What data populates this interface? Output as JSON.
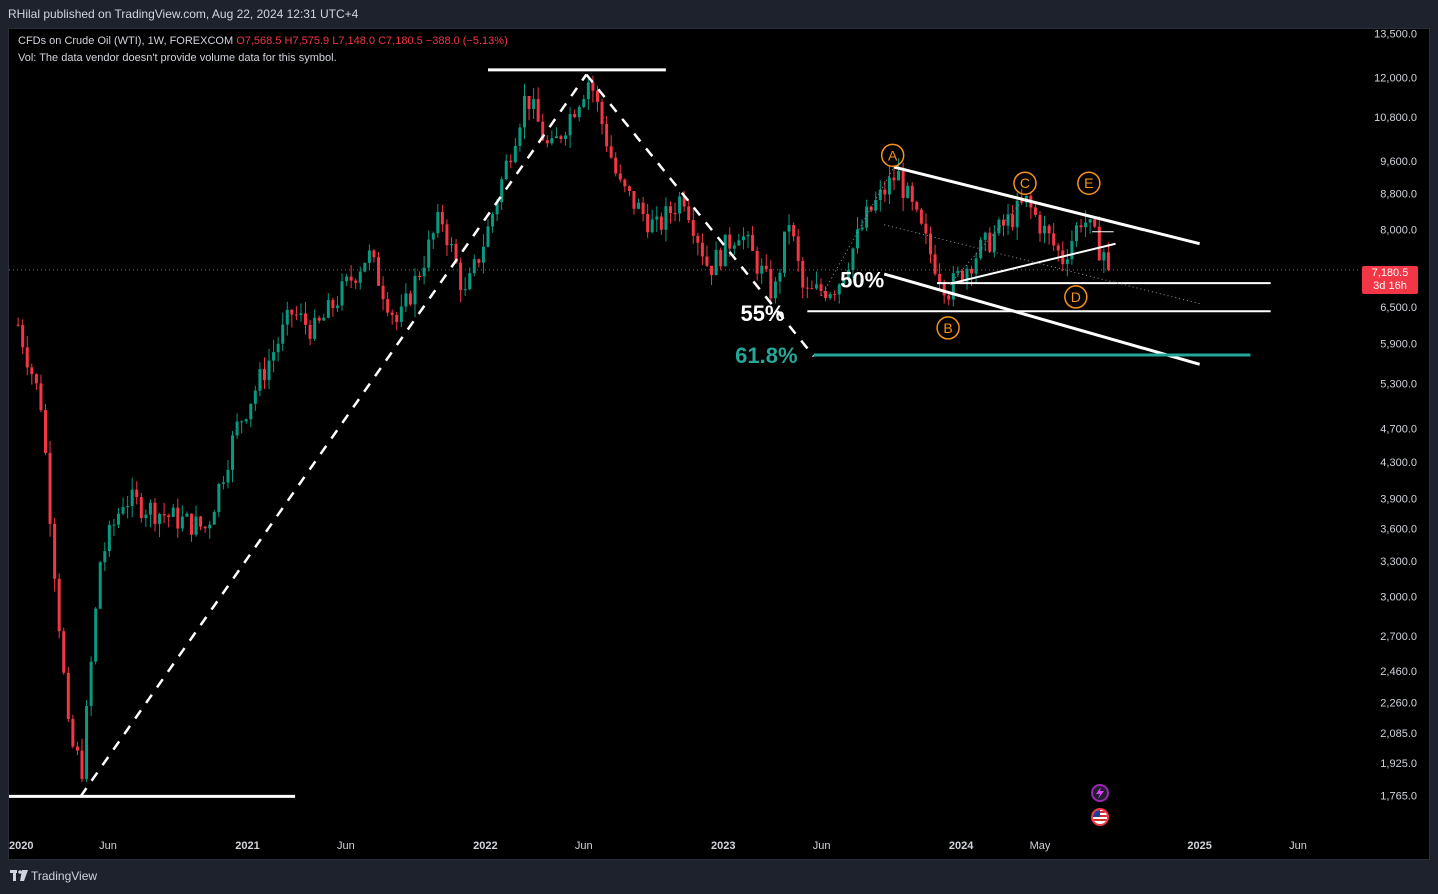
{
  "header": {
    "publisher_text": "RHilal published on TradingView.com, Aug 22, 2024 12:31 UTC+4"
  },
  "legend": {
    "symbol": "CFDs on Crude Oil (WTI), 1W, FOREXCOM",
    "ohlc": "O7,568.5 H7,575.9 L7,148.0 C7,180.5 −388.0 (−5.13%)",
    "volume_note": "Vol: The data vendor doesn't provide volume data for this symbol."
  },
  "price_tag": {
    "price": "7,180.5",
    "countdown": "3d 16h",
    "color": "#f23645"
  },
  "footer": {
    "brand": "TradingView"
  },
  "colors": {
    "background": "#000000",
    "up": "#089981",
    "down": "#f23645",
    "annotation": "#ffffff",
    "wave_label": "#f7931a",
    "fib_618": "#26a69a"
  },
  "icons": [
    "tradingview-logo-icon",
    "lightning-icon",
    "us-flag-icon"
  ],
  "chart_data": {
    "type": "candlestick",
    "y_scale": "log",
    "ylim": [
      1600,
      13700
    ],
    "y_ticks": [
      "13,500.0",
      "12,000.0",
      "10,800.0",
      "9,600.0",
      "8,800.0",
      "8,000.0",
      "6,500.0",
      "5,900.0",
      "5,300.0",
      "4,700.0",
      "4,300.0",
      "3,900.0",
      "3,600.0",
      "3,300.0",
      "3,000.0",
      "2,700.0",
      "2,460.0",
      "2,260.0",
      "2,085.0",
      "1,925.0",
      "1,765.0"
    ],
    "y_tick_values": [
      13500,
      12000,
      10800,
      9600,
      8800,
      8000,
      6500,
      5900,
      5300,
      4700,
      4300,
      3900,
      3600,
      3300,
      3000,
      2700,
      2460,
      2260,
      2085,
      1925,
      1765
    ],
    "x_ticks": [
      {
        "label": "2020",
        "date": "2020-01-01"
      },
      {
        "label": "Jun",
        "date": "2020-06-01"
      },
      {
        "label": "2021",
        "date": "2021-01-01"
      },
      {
        "label": "Jun",
        "date": "2021-06-01"
      },
      {
        "label": "2022",
        "date": "2022-01-01"
      },
      {
        "label": "Jun",
        "date": "2022-06-01"
      },
      {
        "label": "2023",
        "date": "2023-01-01"
      },
      {
        "label": "Jun",
        "date": "2023-06-01"
      },
      {
        "label": "2024",
        "date": "2024-01-01"
      },
      {
        "label": "May",
        "date": "2024-05-01"
      },
      {
        "label": "2025",
        "date": "2025-01-01"
      },
      {
        "label": "Jun",
        "date": "2025-06-01"
      }
    ],
    "xlim": [
      "2020-01-01",
      "2025-09-01"
    ],
    "last_price": 7180.5,
    "anchors": [
      {
        "date": "2020-01-15",
        "close": 6200
      },
      {
        "date": "2020-02-20",
        "close": 5000
      },
      {
        "date": "2020-03-10",
        "close": 3300
      },
      {
        "date": "2020-04-02",
        "close": 2050
      },
      {
        "date": "2020-04-22",
        "close": 1900
      },
      {
        "date": "2020-05-20",
        "close": 3300
      },
      {
        "date": "2020-06-25",
        "close": 3900
      },
      {
        "date": "2020-09-10",
        "close": 3700
      },
      {
        "date": "2020-10-30",
        "close": 3600
      },
      {
        "date": "2020-12-15",
        "close": 4700
      },
      {
        "date": "2021-03-10",
        "close": 6400
      },
      {
        "date": "2021-04-15",
        "close": 6100
      },
      {
        "date": "2021-07-05",
        "close": 7500
      },
      {
        "date": "2021-08-20",
        "close": 6200
      },
      {
        "date": "2021-10-25",
        "close": 8300
      },
      {
        "date": "2021-12-01",
        "close": 6700
      },
      {
        "date": "2022-01-05",
        "close": 8000
      },
      {
        "date": "2022-03-05",
        "close": 11500
      },
      {
        "date": "2022-04-10",
        "close": 9800
      },
      {
        "date": "2022-06-10",
        "close": 12000
      },
      {
        "date": "2022-07-25",
        "close": 9000
      },
      {
        "date": "2022-09-20",
        "close": 8000
      },
      {
        "date": "2022-11-01",
        "close": 8800
      },
      {
        "date": "2022-12-10",
        "close": 7200
      },
      {
        "date": "2023-01-25",
        "close": 8000
      },
      {
        "date": "2023-03-20",
        "close": 6700
      },
      {
        "date": "2023-04-12",
        "close": 8200
      },
      {
        "date": "2023-05-05",
        "close": 6700
      },
      {
        "date": "2023-06-25",
        "close": 6900
      },
      {
        "date": "2023-08-10",
        "close": 8300
      },
      {
        "date": "2023-09-25",
        "close": 9300
      },
      {
        "date": "2023-11-15",
        "close": 7500
      },
      {
        "date": "2023-12-12",
        "close": 6800
      },
      {
        "date": "2024-01-25",
        "close": 7500
      },
      {
        "date": "2024-04-10",
        "close": 8600
      },
      {
        "date": "2024-05-25",
        "close": 7600
      },
      {
        "date": "2024-06-05",
        "close": 7400
      },
      {
        "date": "2024-07-05",
        "close": 8300
      },
      {
        "date": "2024-08-05",
        "close": 7500
      },
      {
        "date": "2024-08-12",
        "close": 7650
      },
      {
        "date": "2024-08-20",
        "close": 7180
      }
    ],
    "drawings": {
      "labels": [
        {
          "text": "55%",
          "date": "2023-04-05",
          "price": 6400,
          "color": "#ffffff"
        },
        {
          "text": "50%",
          "date": "2023-09-05",
          "price": 7000,
          "color": "#ffffff"
        },
        {
          "text": "61.8%",
          "date": "2023-04-25",
          "price": 5720,
          "color": "#26a69a"
        }
      ],
      "waves": [
        {
          "text": "A",
          "date": "2023-09-18",
          "price": 9750
        },
        {
          "text": "B",
          "date": "2023-12-12",
          "price": 6150
        },
        {
          "text": "C",
          "date": "2024-04-08",
          "price": 9050
        },
        {
          "text": "D",
          "date": "2024-06-25",
          "price": 6680
        },
        {
          "text": "E",
          "date": "2024-07-15",
          "price": 9050
        }
      ]
    }
  }
}
